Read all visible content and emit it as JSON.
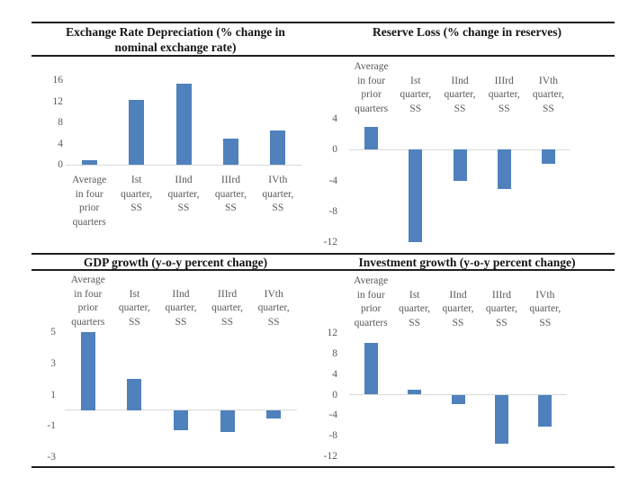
{
  "style": {
    "background": "#ffffff",
    "rule_color": "#1f1f1f",
    "title_color": "#141414",
    "label_color": "#595959",
    "axis_line_color": "#d9d9d9",
    "bar_color": "#4f81bd"
  },
  "chart_data": [
    {
      "type": "bar",
      "title": "Exchange Rate Depreciation (% change in nominal exchange rate)",
      "categories": [
        "Average\nin four\nprior\nquarters",
        "Ist\nquarter,\nSS",
        "IInd\nquarter,\nSS",
        "IIIrd\nquarter,\nSS",
        "IVth\nquarter,\nSS"
      ],
      "values": [
        0.8,
        12.2,
        15.4,
        5.0,
        6.5
      ],
      "yticks": [
        16,
        12,
        8,
        4,
        0
      ],
      "ylim": [
        0,
        16
      ],
      "xlabel": "",
      "ylabel": "",
      "grid": false,
      "legend": "none",
      "bar_color": "#4f81bd",
      "labels_position": "below-axis"
    },
    {
      "type": "bar",
      "title": "Reserve Loss (% change in reserves)",
      "categories": [
        "Average\nin four\nprior\nquarters",
        "Ist\nquarter,\nSS",
        "IInd\nquarter,\nSS",
        "IIIrd\nquarter,\nSS",
        "IVth\nquarter,\nSS"
      ],
      "values": [
        3.0,
        -12.0,
        -4.1,
        -5.1,
        -1.8
      ],
      "yticks": [
        4,
        0,
        -4,
        -8,
        -12
      ],
      "ylim": [
        -12,
        4
      ],
      "xlabel": "",
      "ylabel": "",
      "grid": false,
      "legend": "none",
      "bar_color": "#4f81bd",
      "labels_position": "above-plot"
    },
    {
      "type": "bar",
      "title": "GDP growth (y-o-y percent change)",
      "categories": [
        "Average\nin four\nprior\nquarters",
        "Ist\nquarter,\nSS",
        "IInd\nquarter,\nSS",
        "IIIrd\nquarter,\nSS",
        "IVth\nquarter,\nSS"
      ],
      "values": [
        5.0,
        2.0,
        -1.3,
        -1.4,
        -0.5
      ],
      "yticks": [
        5,
        3,
        1,
        -1,
        -3
      ],
      "ylim": [
        -3,
        5
      ],
      "xlabel": "",
      "ylabel": "",
      "grid": false,
      "legend": "none",
      "bar_color": "#4f81bd",
      "labels_position": "above-plot"
    },
    {
      "type": "bar",
      "title": "Investment growth (y-o-y percent change)",
      "categories": [
        "Average\nin four\nprior\nquarters",
        "Ist\nquarter,\nSS",
        "IInd\nquarter,\nSS",
        "IIIrd\nquarter,\nSS",
        "IVth\nquarter,\nSS"
      ],
      "values": [
        10.0,
        1.0,
        -1.8,
        -9.5,
        -6.3
      ],
      "yticks": [
        12,
        8,
        4,
        0,
        -4,
        -8,
        -12
      ],
      "ylim": [
        -12,
        12
      ],
      "xlabel": "",
      "ylabel": "",
      "grid": false,
      "legend": "none",
      "bar_color": "#4f81bd",
      "labels_position": "above-plot"
    }
  ]
}
